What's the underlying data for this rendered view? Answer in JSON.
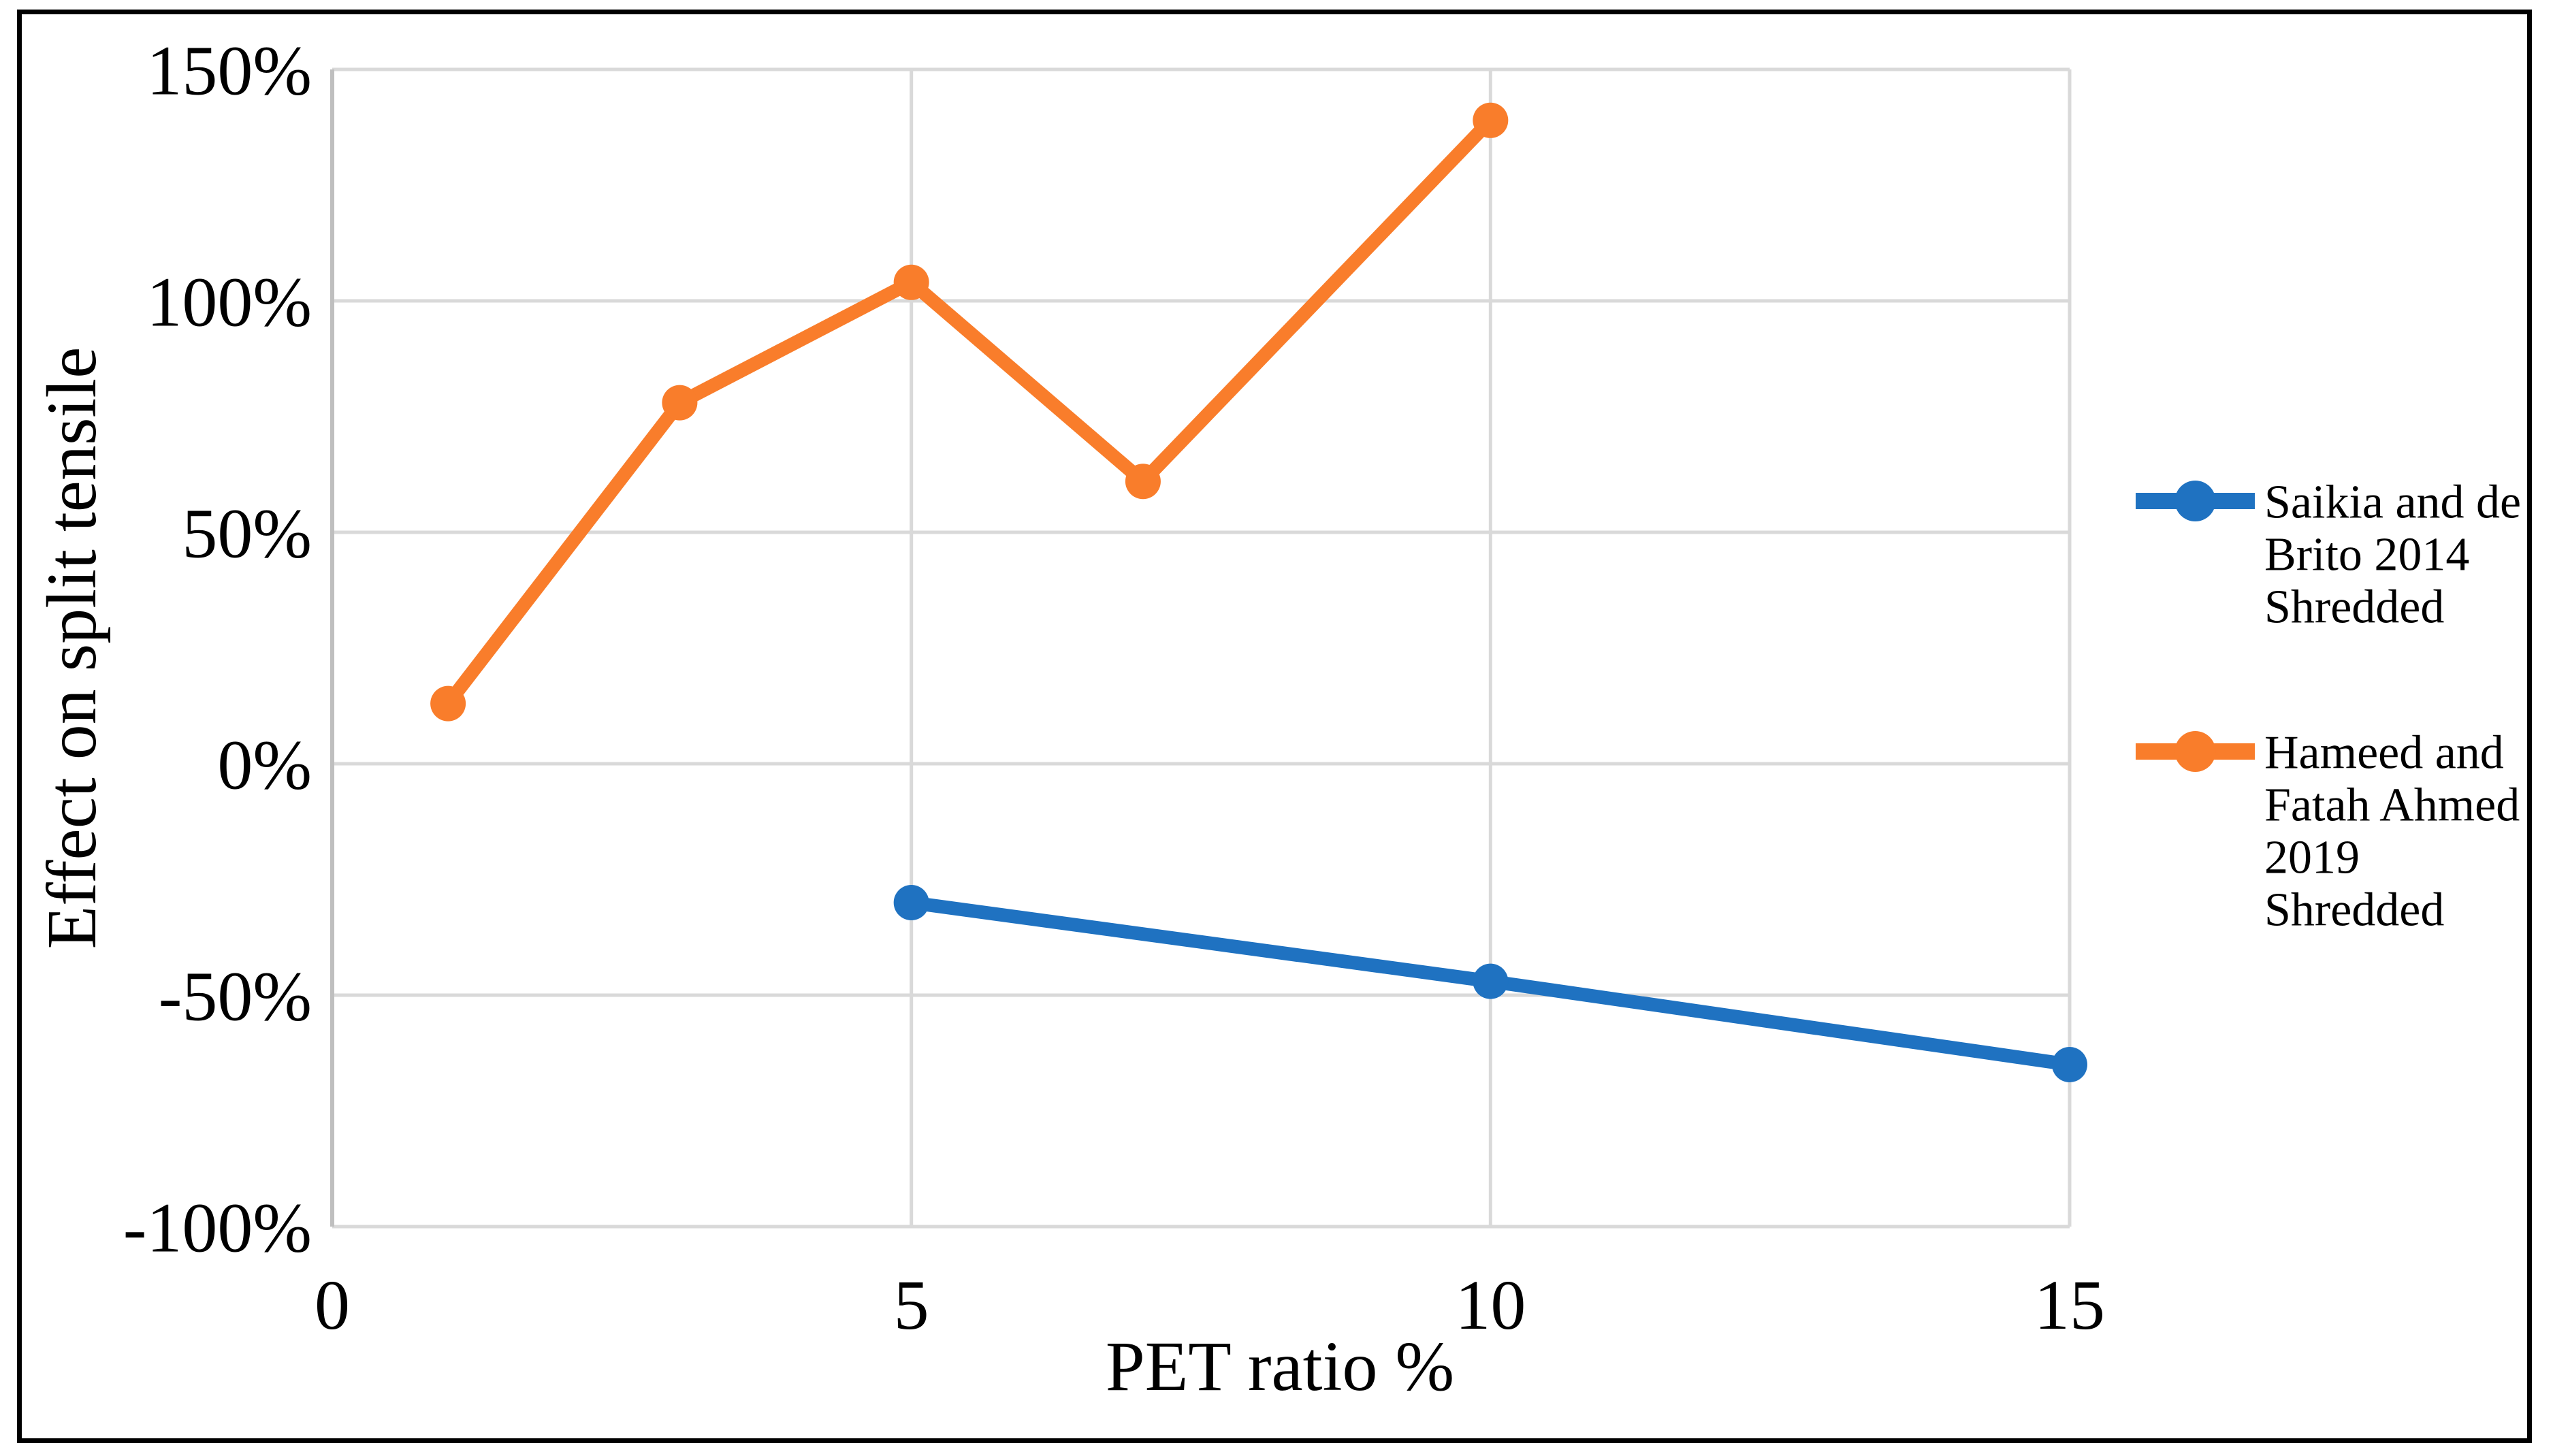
{
  "chart_data": {
    "type": "line",
    "title": "",
    "xlabel": "PET ratio %",
    "ylabel": "Effect on split tensile",
    "xlim": [
      0,
      15
    ],
    "ylim_pct": [
      -100,
      150
    ],
    "grid": true,
    "legend_position": "right",
    "x_ticks": [
      0,
      5,
      10,
      15
    ],
    "x_tick_labels": [
      "0",
      "5",
      "10",
      "15"
    ],
    "y_tick_values": [
      150,
      100,
      50,
      0,
      -50,
      -100
    ],
    "y_tick_labels": [
      "150%",
      "100%",
      "50%",
      "0%",
      "-50%",
      "-100%"
    ],
    "series": [
      {
        "name": "Saikia and de Brito 2014 Shredded",
        "color": "#1F72C1",
        "x": [
          5,
          10,
          15
        ],
        "values_pct": [
          -30,
          -47,
          -65
        ],
        "legend_lines": [
          "Saikia and de",
          "Brito 2014",
          "Shredded"
        ]
      },
      {
        "name": "Hameed and Fatah Ahmed 2019 Shredded",
        "color": "#F97D2B",
        "x": [
          1,
          3,
          5,
          7,
          10
        ],
        "values_pct": [
          13,
          78,
          104,
          61,
          139
        ],
        "legend_lines": [
          "Hameed and",
          "Fatah Ahmed",
          "2019",
          "Shredded"
        ]
      }
    ],
    "colors": {
      "gridline": "#D9D9D9",
      "axis_line": "#BFBFBF",
      "text": "#000000",
      "frame_border": "#000000",
      "background": "#FFFFFF"
    }
  }
}
